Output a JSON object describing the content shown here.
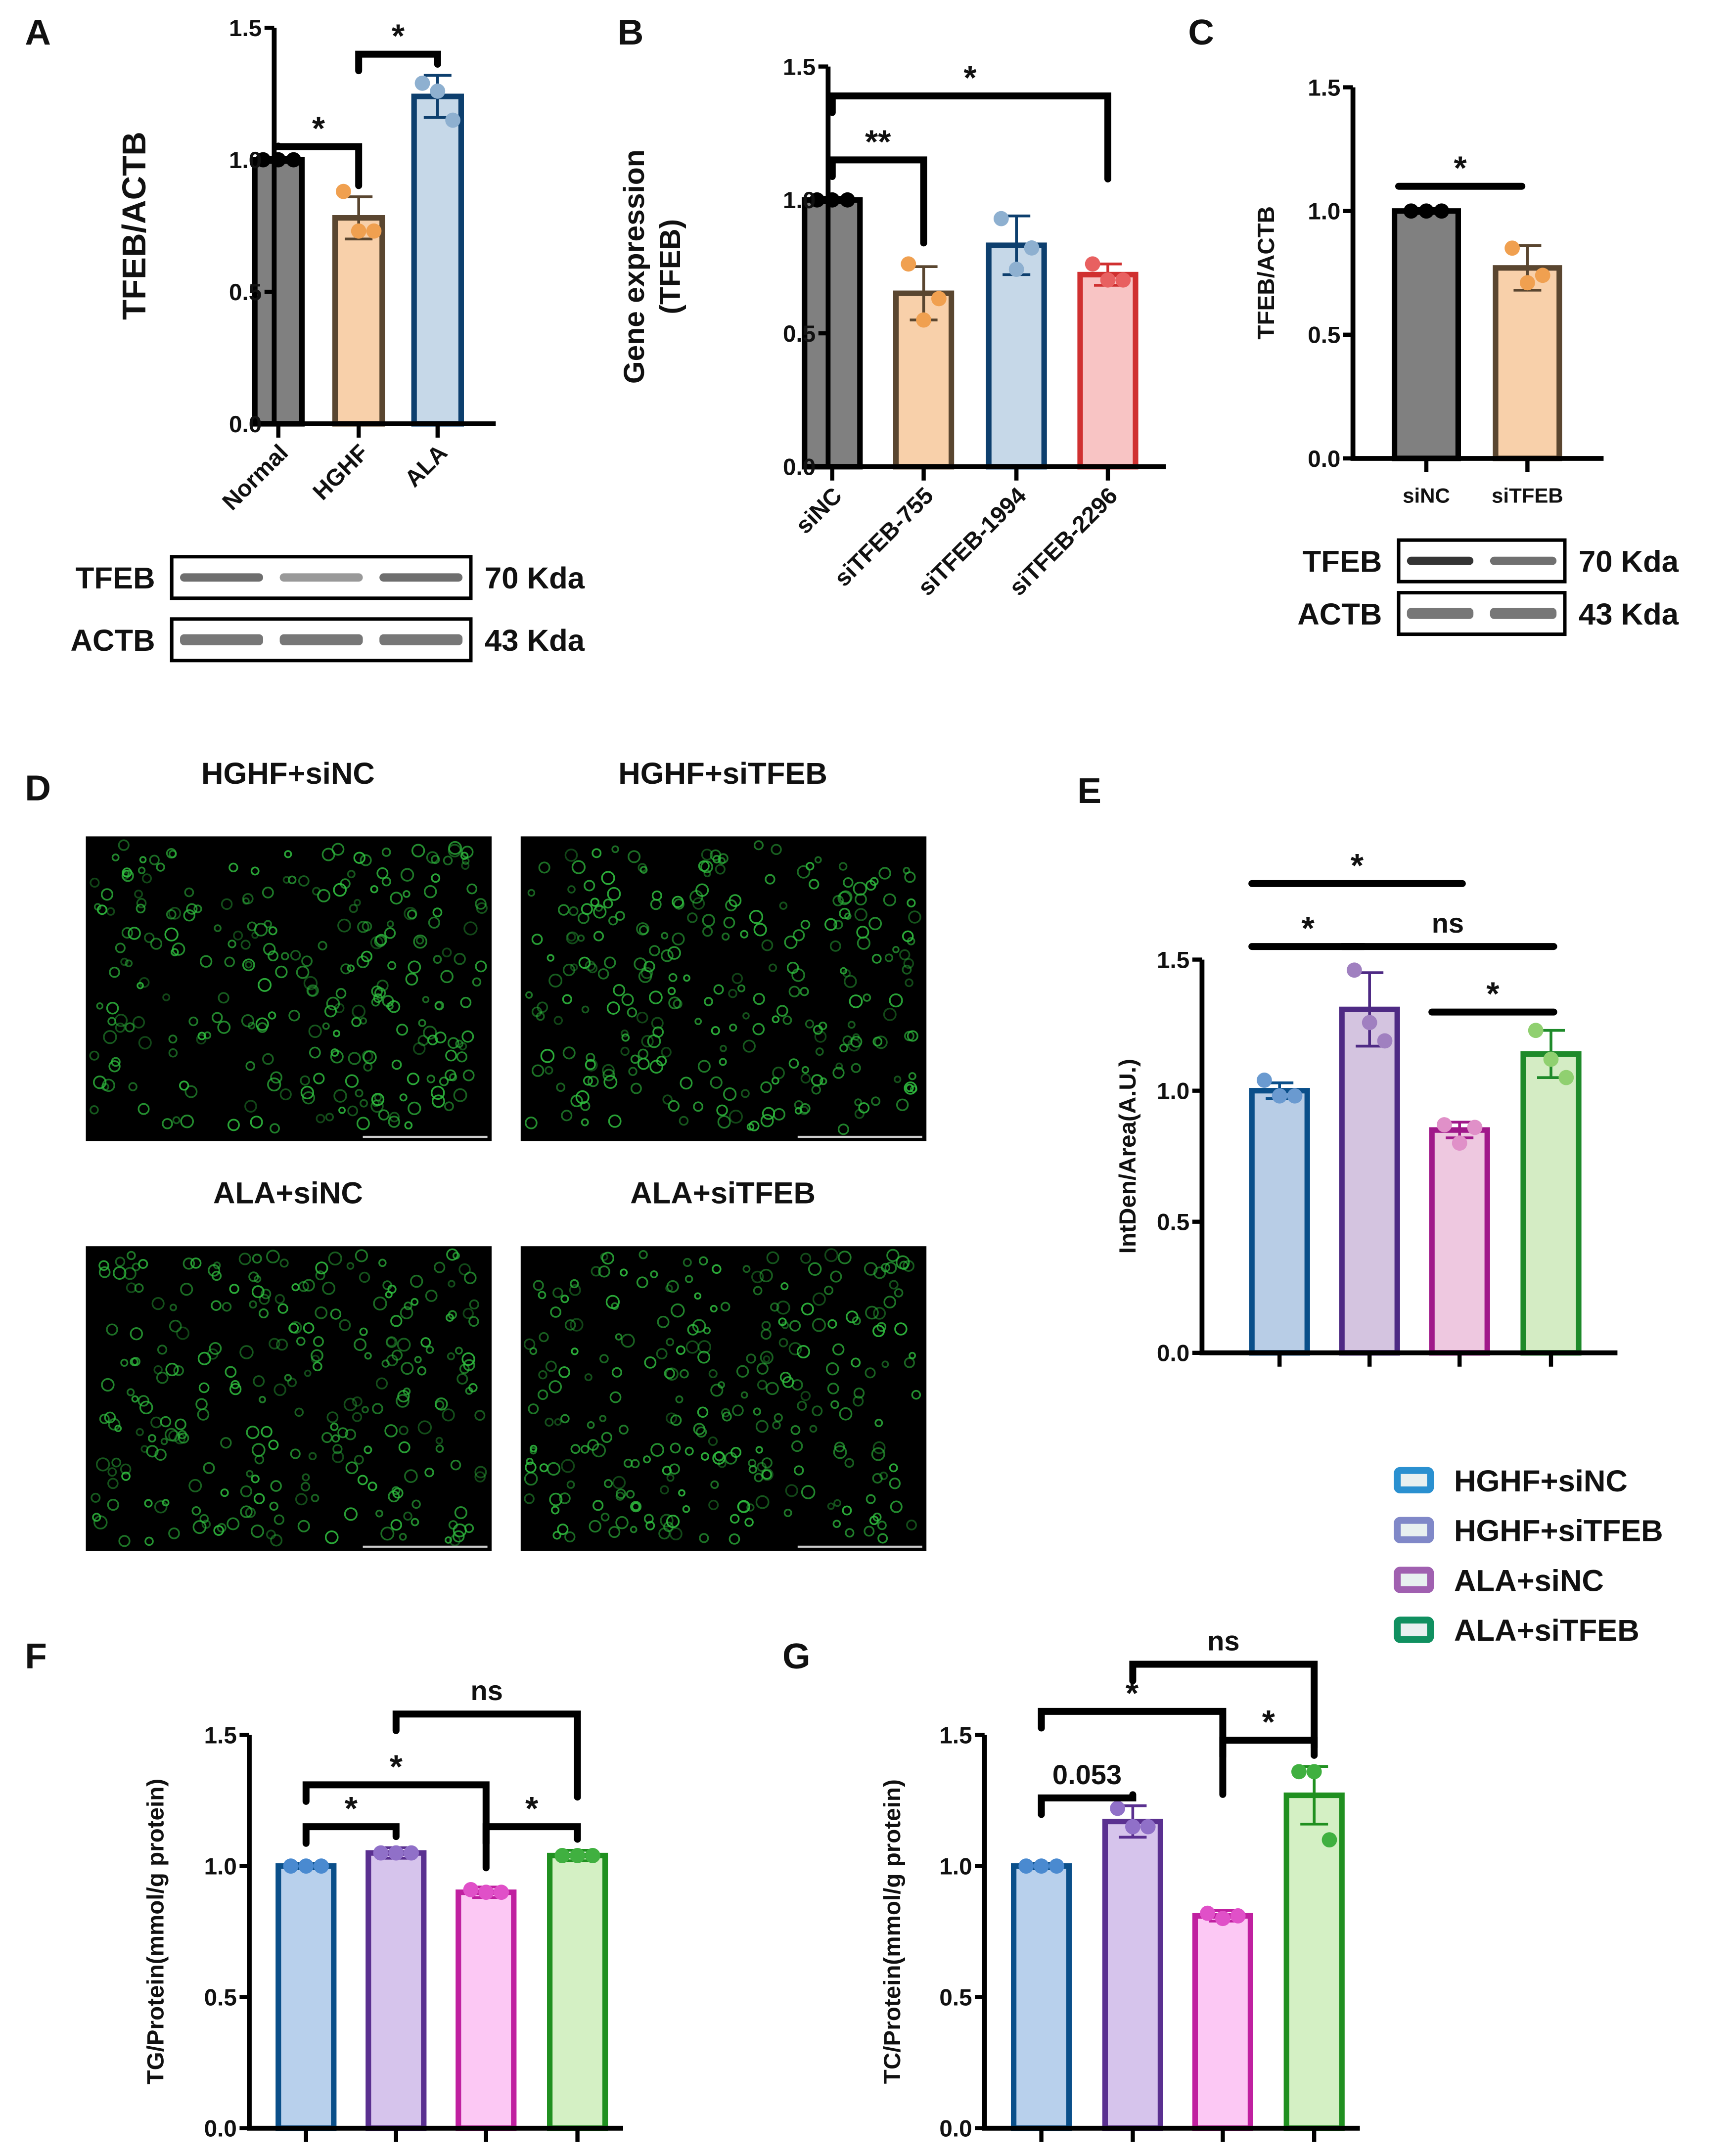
{
  "panels": {
    "A": "A",
    "B": "B",
    "C": "C",
    "D": "D",
    "E": "E",
    "F": "F",
    "G": "G"
  },
  "chart_data": [
    {
      "id": "A",
      "type": "bar",
      "ylabel": "TFEB/ACTB",
      "ylim": [
        0,
        1.5
      ],
      "yticks": [
        "0.0",
        "0.5",
        "1.0",
        "1.5"
      ],
      "categories": [
        "Normal",
        "HGHF",
        "ALA"
      ],
      "values": [
        1.0,
        0.78,
        1.24
      ],
      "errors": [
        0.01,
        0.08,
        0.08
      ],
      "points": [
        [
          1,
          1,
          1
        ],
        [
          0.88,
          0.73,
          0.73
        ],
        [
          1.29,
          1.26,
          1.15
        ]
      ],
      "fill": [
        "#808080",
        "#f8d0aa",
        "#c6d8e8"
      ],
      "stroke": [
        "#000000",
        "#5a4630",
        "#0d3f6e"
      ],
      "marker_color": [
        "#000000",
        "#f0a050",
        "#8eb0d0"
      ],
      "significance": [
        {
          "from": 0,
          "to": 1,
          "label": "*",
          "y": 1.05
        },
        {
          "from": 1,
          "to": 2,
          "label": "*",
          "y": 1.4
        }
      ],
      "blot": {
        "rows": [
          "TFEB",
          "ACTB"
        ],
        "markers": [
          "70 Kda",
          "43 Kda"
        ]
      }
    },
    {
      "id": "B",
      "type": "bar",
      "ylabel": "Gene expression (TFEB)",
      "ylabel_lines": [
        "Gene expression",
        "(TFEB)"
      ],
      "ylim": [
        0,
        1.5
      ],
      "yticks": [
        "0.0",
        "0.5",
        "1.0",
        "1.5"
      ],
      "categories": [
        "siNC",
        "siTFEB-755",
        "siTFEB-1994",
        "siTFEB-2296"
      ],
      "values": [
        1.0,
        0.65,
        0.83,
        0.72
      ],
      "errors": [
        0.01,
        0.1,
        0.11,
        0.04
      ],
      "points": [
        [
          1,
          1,
          1
        ],
        [
          0.76,
          0.55,
          0.63
        ],
        [
          0.93,
          0.74,
          0.82
        ],
        [
          0.76,
          0.7,
          0.7
        ]
      ],
      "fill": [
        "#808080",
        "#f8d0aa",
        "#c6d8e8",
        "#f8c4c4"
      ],
      "stroke": [
        "#000000",
        "#5a4630",
        "#0d3f6e",
        "#d03030"
      ],
      "marker_color": [
        "#000000",
        "#f0a050",
        "#8eb0d0",
        "#e86060"
      ],
      "significance": [
        {
          "from": 0,
          "to": 1,
          "label": "**",
          "y": 1.15
        },
        {
          "from": 0,
          "to": 3,
          "label": "*",
          "y": 1.39
        }
      ]
    },
    {
      "id": "C",
      "type": "bar",
      "ylabel": "TFEB/ACTB",
      "ylim": [
        0,
        1.5
      ],
      "yticks": [
        "0.0",
        "0.5",
        "1.0",
        "1.5"
      ],
      "categories": [
        "siNC",
        "siTFEB"
      ],
      "values": [
        1.0,
        0.77
      ],
      "errors": [
        0.01,
        0.09
      ],
      "points": [
        [
          1,
          1,
          1
        ],
        [
          0.85,
          0.71,
          0.74
        ]
      ],
      "fill": [
        "#808080",
        "#f8d0aa"
      ],
      "stroke": [
        "#000000",
        "#5a4630"
      ],
      "marker_color": [
        "#000000",
        "#f0a050"
      ],
      "significance": [
        {
          "from": 0,
          "to": 1,
          "label": "*",
          "y": 1.1,
          "line_only": true
        }
      ],
      "blot": {
        "rows": [
          "TFEB",
          "ACTB"
        ],
        "markers": [
          "70 Kda",
          "43 Kda"
        ]
      }
    },
    {
      "id": "E",
      "type": "bar",
      "ylabel": "IntDen/Area(A.U.)",
      "ylim": [
        0,
        1.5
      ],
      "yticks": [
        "0.0",
        "0.5",
        "1.0",
        "1.5"
      ],
      "categories": [
        "HGHF+siNC",
        "HGHF+siTFEB",
        "ALA+siNC",
        "ALA+siTFEB"
      ],
      "values": [
        1.0,
        1.31,
        0.85,
        1.14
      ],
      "errors": [
        0.03,
        0.14,
        0.03,
        0.09
      ],
      "points": [
        [
          1.04,
          0.98,
          0.98
        ],
        [
          1.46,
          1.26,
          1.19
        ],
        [
          0.87,
          0.8,
          0.86
        ],
        [
          1.23,
          1.12,
          1.05
        ]
      ],
      "fill": [
        "#b8cde6",
        "#d4c4e0",
        "#eec8e0",
        "#d4ecc4"
      ],
      "stroke": [
        "#0a4f8a",
        "#4e2a84",
        "#a0188a",
        "#1e8a2a"
      ],
      "marker_color": [
        "#6a9ad0",
        "#a080c0",
        "#e090c8",
        "#90d070"
      ],
      "significance": [
        {
          "from": 0,
          "to": 2,
          "label": "*",
          "y": 1.79,
          "line_only": true
        },
        {
          "from": 0,
          "to": 1,
          "label": "*",
          "y": 1.55,
          "line_only": true
        },
        {
          "from": 1,
          "to": 3,
          "label": "ns",
          "y": 1.55,
          "line_only": true
        },
        {
          "from": 2,
          "to": 3,
          "label": "*",
          "y": 1.3,
          "line_only": true
        }
      ],
      "legend": {
        "position": "bottom-right",
        "entries": [
          "HGHF+siNC",
          "HGHF+siTFEB",
          "ALA+siNC",
          "ALA+siTFEB"
        ],
        "colors": [
          "#2a90d0",
          "#8088c8",
          "#a060b0",
          "#109060"
        ]
      }
    },
    {
      "id": "F",
      "type": "bar",
      "ylabel": "TG/Protein(mmol/g protein)",
      "ylim": [
        0,
        1.5
      ],
      "yticks": [
        "0.0",
        "0.5",
        "1.0",
        "1.5"
      ],
      "categories": [
        "HGHF+siNC",
        "HGHF+siTFEB",
        "ALA+siNC",
        "ALA+siTFEB"
      ],
      "values": [
        1.0,
        1.05,
        0.9,
        1.04
      ],
      "errors": [
        0.01,
        0.02,
        0.02,
        0.02
      ],
      "points": [
        [
          1,
          1,
          1
        ],
        [
          1.05,
          1.05,
          1.05
        ],
        [
          0.91,
          0.9,
          0.9
        ],
        [
          1.04,
          1.04,
          1.04
        ]
      ],
      "fill": [
        "#b8d0ec",
        "#d6c4ec",
        "#fcc8f4",
        "#d4f0c4"
      ],
      "stroke": [
        "#0a4f8a",
        "#5a3090",
        "#c020a0",
        "#209020"
      ],
      "marker_color": [
        "#4a8ad0",
        "#9070c8",
        "#e050c8",
        "#40b040"
      ],
      "significance": [
        {
          "from": 0,
          "to": 1,
          "label": "*",
          "y": 1.15
        },
        {
          "from": 0,
          "to": 2,
          "label": "*",
          "y": 1.31
        },
        {
          "from": 2,
          "to": 3,
          "label": "*",
          "y": 1.15
        },
        {
          "from": 1,
          "to": 3,
          "label": "ns",
          "y": 1.58
        }
      ]
    },
    {
      "id": "G",
      "type": "bar",
      "ylabel": "TC/Protein(mmol/g protein)",
      "ylim": [
        0,
        1.5
      ],
      "yticks": [
        "0.0",
        "0.5",
        "1.0",
        "1.5"
      ],
      "categories": [
        "HGHF+siNC",
        "HGHF+siTFEB",
        "ALA+siNC",
        "ALA+siTFEB"
      ],
      "values": [
        1.0,
        1.17,
        0.81,
        1.27
      ],
      "errors": [
        0.01,
        0.06,
        0.02,
        0.11
      ],
      "points": [
        [
          1,
          1,
          1
        ],
        [
          1.22,
          1.15,
          1.15
        ],
        [
          0.82,
          0.8,
          0.81
        ],
        [
          1.36,
          1.36,
          1.1
        ]
      ],
      "fill": [
        "#b8d0ec",
        "#d6c4ec",
        "#fcc8f4",
        "#d4f0c4"
      ],
      "stroke": [
        "#0a4f8a",
        "#5a3090",
        "#c020a0",
        "#209020"
      ],
      "marker_color": [
        "#4a8ad0",
        "#9070c8",
        "#e050c8",
        "#40b040"
      ],
      "significance": [
        {
          "from": 0,
          "to": 1,
          "label": "0.053",
          "y": 1.26
        },
        {
          "from": 0,
          "to": 2,
          "label": "*",
          "y": 1.59
        },
        {
          "from": 2,
          "to": 3,
          "label": "*",
          "y": 1.48
        },
        {
          "from": 1,
          "to": 3,
          "label": "ns",
          "y": 1.77
        }
      ]
    }
  ],
  "images": {
    "titles": [
      "HGHF+siNC",
      "HGHF+siTFEB",
      "ALA+siNC",
      "ALA+siTFEB"
    ],
    "color": "#30c040"
  }
}
